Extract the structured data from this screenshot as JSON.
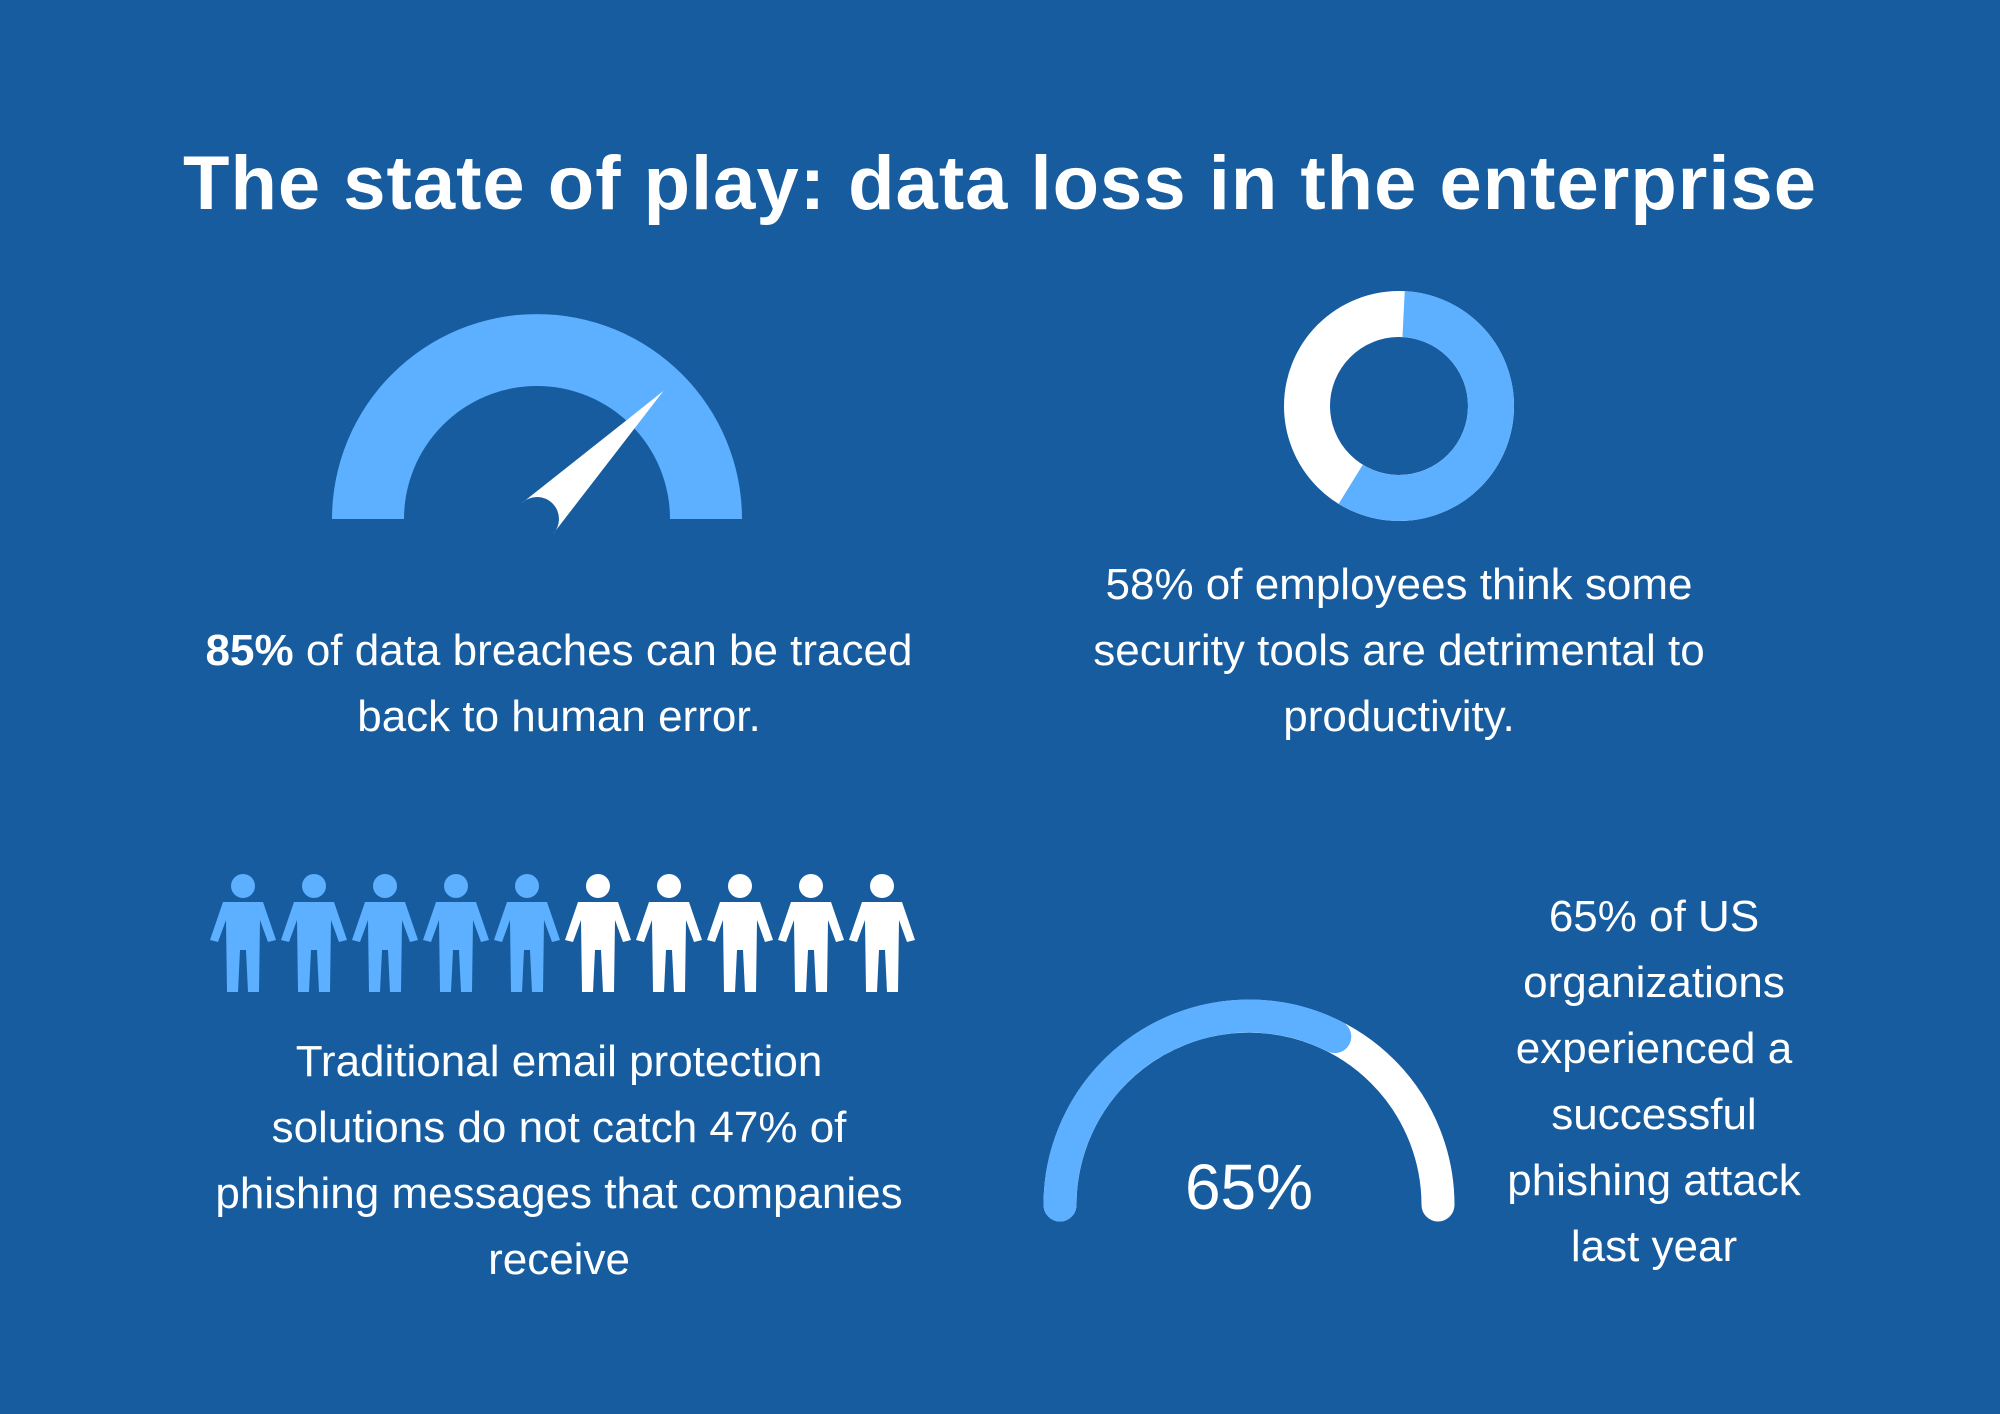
{
  "title": "The state of play: data loss in the enterprise",
  "colors": {
    "background": "#165c9f",
    "accent": "#5cb0ff",
    "white": "#ffffff"
  },
  "stat_human_error": {
    "value_percent": 85,
    "highlight": "85%",
    "line1_rest": " of data breaches can be traced",
    "line2": "back to human error.",
    "icon": "speedometer-gauge-icon"
  },
  "stat_security_tools": {
    "value_percent": 58,
    "lines": [
      "58% of employees think some",
      "security tools are detrimental to",
      "productivity."
    ],
    "icon": "donut-chart-icon"
  },
  "stat_email_protection": {
    "value_percent": 47,
    "people_total": 10,
    "people_highlighted": 5,
    "lines": [
      "Traditional email protection",
      "solutions do not catch 47% of",
      "phishing messages that companies",
      "receive"
    ],
    "icon": "people-icon"
  },
  "stat_phishing": {
    "value_percent": 65,
    "gauge_label": "65%",
    "lines": [
      "65% of US",
      "organizations",
      "experienced a",
      "successful",
      "phishing attack",
      "last year"
    ],
    "icon": "semicircle-progress-icon"
  }
}
